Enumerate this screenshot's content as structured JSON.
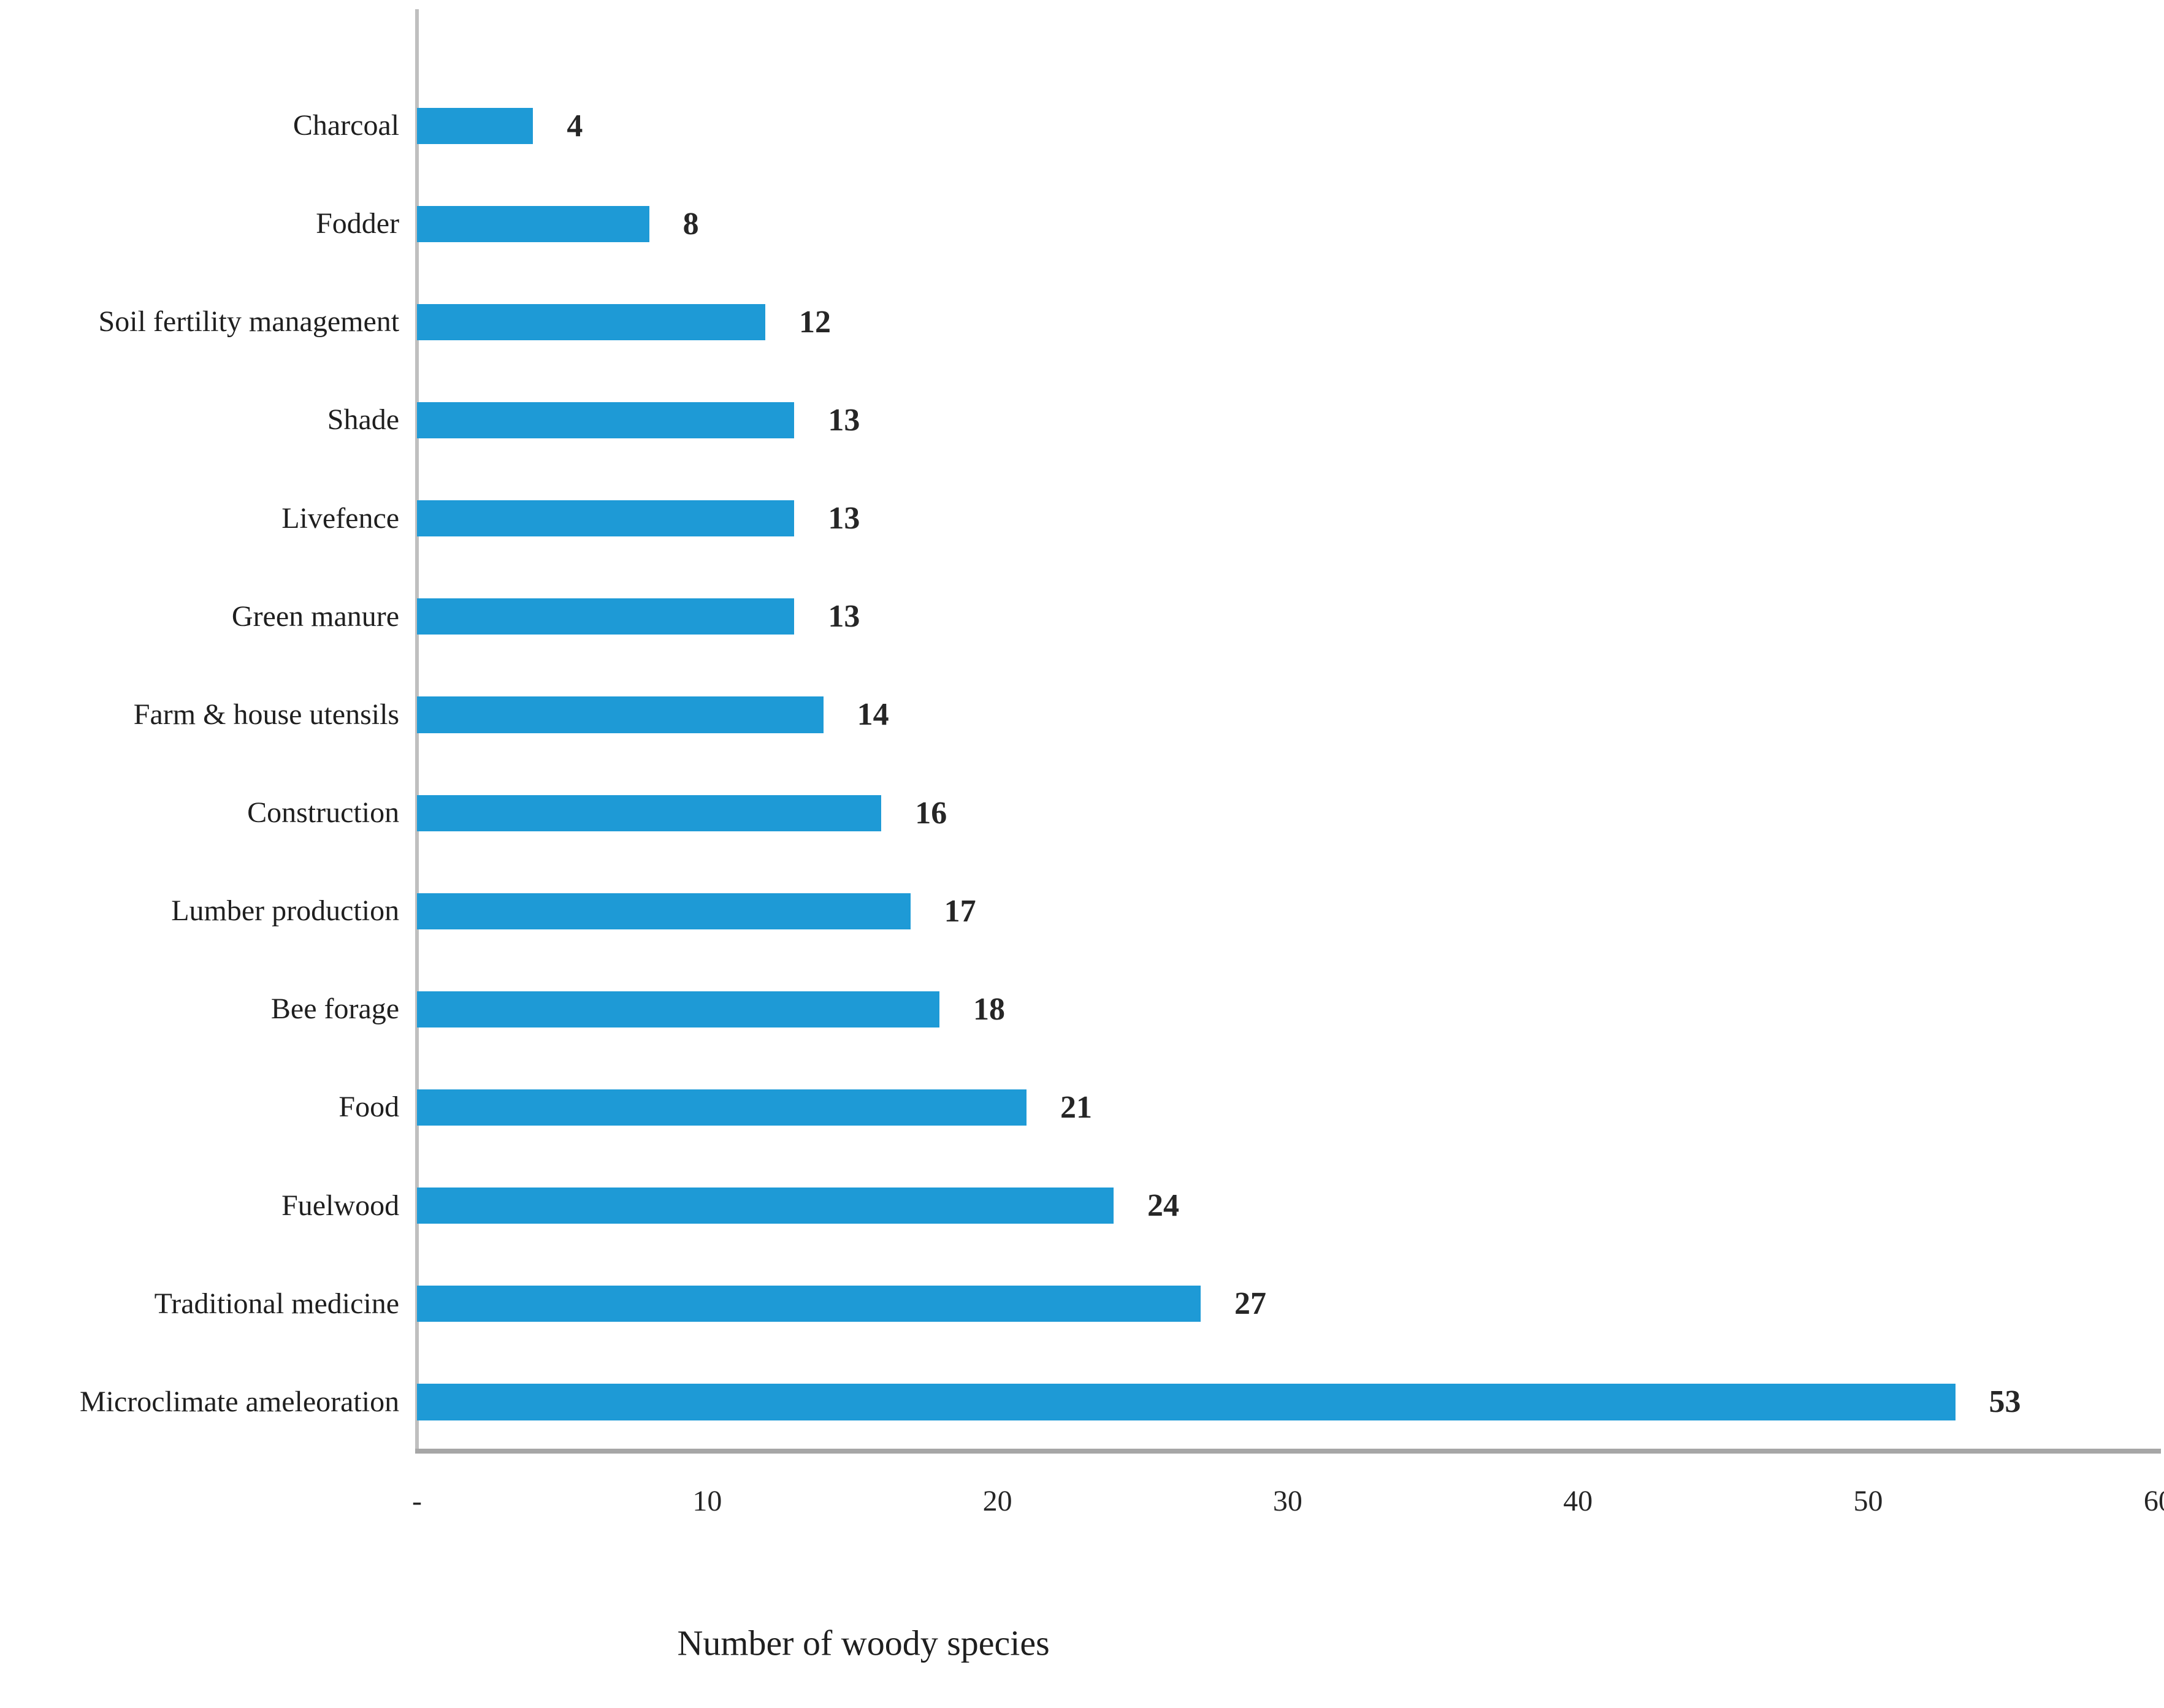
{
  "chart_data": {
    "type": "bar",
    "orientation": "horizontal",
    "title": "",
    "xlabel": "Number of woody species",
    "ylabel": "",
    "xlim": [
      0,
      60
    ],
    "grid": false,
    "legend": null,
    "bar_color": "#1e9ad6",
    "category_axis_line_color": "#bfbfbf",
    "value_axis_line_color": "#a6a6a6",
    "x_ticks": [
      {
        "label": "-",
        "value": 0
      },
      {
        "label": "10",
        "value": 10
      },
      {
        "label": "20",
        "value": 20
      },
      {
        "label": "30",
        "value": 30
      },
      {
        "label": "40",
        "value": 40
      },
      {
        "label": "50",
        "value": 50
      },
      {
        "label": "60",
        "value": 60
      }
    ],
    "categories": [
      "Charcoal",
      "Fodder",
      "Soil fertility management",
      "Shade",
      "Livefence",
      "Green manure",
      "Farm & house utensils",
      "Construction",
      "Lumber production",
      "Bee forage",
      "Food",
      "Fuelwood",
      "Traditional medicine",
      "Microclimate ameleoration"
    ],
    "values": [
      4,
      8,
      12,
      13,
      13,
      13,
      14,
      16,
      17,
      18,
      21,
      24,
      27,
      53
    ],
    "data_labels_visible": true
  }
}
